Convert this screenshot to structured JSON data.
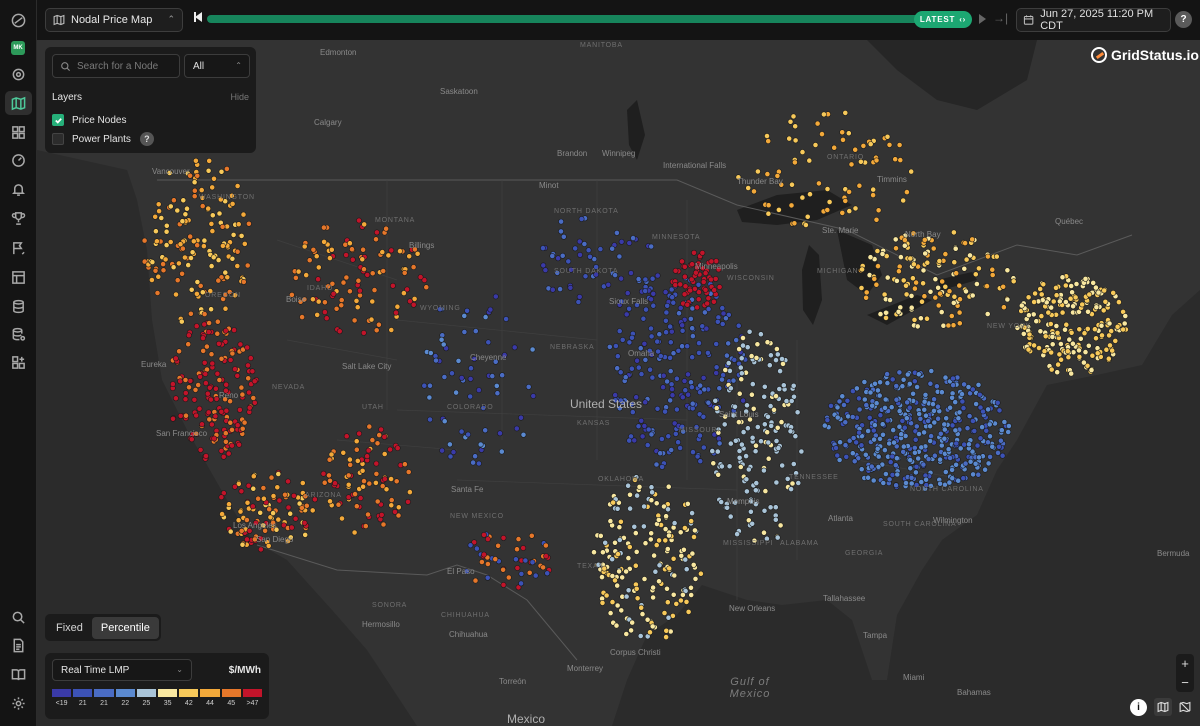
{
  "top_bar": {
    "map_select_label": "Nodal Price Map",
    "latest_label": "LATEST",
    "datetime": "Jun 27, 2025 11:20 PM CDT",
    "help_label": "?"
  },
  "brand": {
    "name": "GridStatus.io"
  },
  "avatar": {
    "initials": "MK"
  },
  "layers_panel": {
    "search_placeholder": "Search for a Node",
    "filter_value": "All",
    "title": "Layers",
    "hide_label": "Hide",
    "items": [
      {
        "label": "Price Nodes",
        "checked": true
      },
      {
        "label": "Power Plants",
        "checked": false,
        "help": "?"
      }
    ]
  },
  "mode_tabs": [
    {
      "label": "Fixed",
      "active": false
    },
    {
      "label": "Percentile",
      "active": true
    }
  ],
  "legend": {
    "metric": "Real Time LMP",
    "unit": "$/MWh",
    "bins": [
      {
        "label": "<19",
        "color": "#3a3aa8"
      },
      {
        "label": "21",
        "color": "#3c52b6"
      },
      {
        "label": "21",
        "color": "#4a6cc4"
      },
      {
        "label": "22",
        "color": "#5b8ad0"
      },
      {
        "label": "25",
        "color": "#a9c4d8"
      },
      {
        "label": "35",
        "color": "#f8e7a0"
      },
      {
        "label": "42",
        "color": "#f7c95a"
      },
      {
        "label": "44",
        "color": "#f3a93a"
      },
      {
        "label": "45",
        "color": "#e6772a"
      },
      {
        "label": ">47",
        "color": "#c2142a"
      }
    ]
  },
  "map_controls": {
    "zoom_in": "+",
    "zoom_out": "−",
    "info": "i"
  },
  "map_labels": {
    "cities": [
      "Edmonton",
      "Saskatoon",
      "Calgary",
      "Brandon",
      "Winnipeg",
      "International Falls",
      "Thunder Bay",
      "Timmins",
      "North Bay",
      "Ste. Marie",
      "Québec",
      "Vancouver",
      "Minot",
      "Sioux Falls",
      "Cheyenne",
      "Omaha",
      "Minneapolis",
      "Saint Louis",
      "Memphis",
      "Atlanta",
      "Tallahassee",
      "Tampa",
      "Miami",
      "Wilmington",
      "Santa Fe",
      "El Paso",
      "Hermosillo",
      "Chihuahua",
      "Torreón",
      "Monterrey",
      "New Orleans",
      "Corpus Christi",
      "San Francisco",
      "Los Angeles",
      "San Diego",
      "Reno",
      "Salt Lake City",
      "Boise",
      "Billings",
      "Bahamas",
      "Bermuda",
      "Eureka"
    ],
    "states": [
      "MANITOBA",
      "ONTARIO",
      "NORTH DAKOTA",
      "SOUTH DAKOTA",
      "MINNESOTA",
      "WISCONSIN",
      "MICHIGAN",
      "NEBRASKA",
      "KANSAS",
      "MISSOURI",
      "OKLAHOMA",
      "TEXAS",
      "NEW MEXICO",
      "COLORADO",
      "UTAH",
      "NEVADA",
      "OREGON",
      "IDAHO",
      "WYOMING",
      "MONTANA",
      "WASHINGTON",
      "ARIZONA",
      "TENNESSEE",
      "ALABAMA",
      "MISSISSIPPI",
      "GEORGIA",
      "NORTH CAROLINA",
      "SOUTH CAROLINA",
      "NEW YORK",
      "SONORA",
      "CHIHUAHUA"
    ],
    "country": "United States",
    "country_south": "Mexico",
    "gulf": "Gulf of Mexico"
  }
}
